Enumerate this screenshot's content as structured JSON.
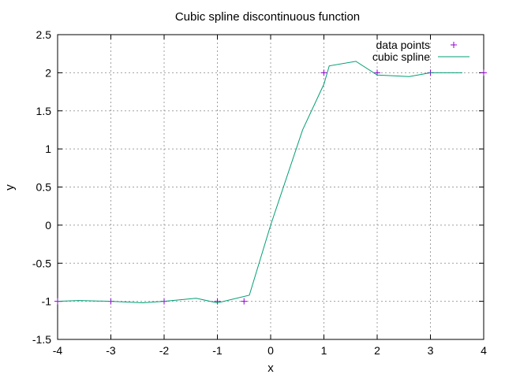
{
  "chart_data": {
    "type": "line",
    "title": "Cubic spline discontinuous function",
    "xlabel": "x",
    "ylabel": "y",
    "xlim": [
      -4,
      4
    ],
    "ylim": [
      -1.5,
      2.5
    ],
    "xticks": [
      -4,
      -3,
      -2,
      -1,
      0,
      1,
      2,
      3,
      4
    ],
    "yticks": [
      -1.5,
      -1,
      -0.5,
      0,
      0.5,
      1,
      1.5,
      2,
      2.5
    ],
    "xtick_labels": [
      "-4",
      "-3",
      "-2",
      "-1",
      "0",
      "1",
      "2",
      "3",
      "4"
    ],
    "ytick_labels": [
      "-1.5",
      "-1",
      "-0.5",
      "0",
      "0.5",
      "1",
      "1.5",
      "2",
      "2.5"
    ],
    "grid": true,
    "legend_position": "top-right",
    "series": [
      {
        "name": "data points",
        "style": "points",
        "marker": "+",
        "color": "#9400d3",
        "x": [
          -4,
          -3,
          -2,
          -1,
          -0.5,
          1,
          2,
          3,
          4
        ],
        "y": [
          -1,
          -1,
          -1,
          -1,
          -1,
          2,
          2,
          2,
          2
        ]
      },
      {
        "name": "cubic spline",
        "style": "line",
        "color": "#009e73",
        "x": [
          -4,
          -3.6,
          -3,
          -2.4,
          -2,
          -1.4,
          -1,
          -0.4,
          0,
          0.6,
          1,
          1.1,
          1.6,
          2,
          2.6,
          3,
          3.6
        ],
        "y": [
          -1,
          -0.99,
          -1,
          -1.02,
          -1,
          -0.96,
          -1.02,
          -0.92,
          0,
          1.25,
          1.85,
          2.09,
          2.15,
          1.97,
          1.95,
          2,
          2
        ]
      }
    ]
  }
}
